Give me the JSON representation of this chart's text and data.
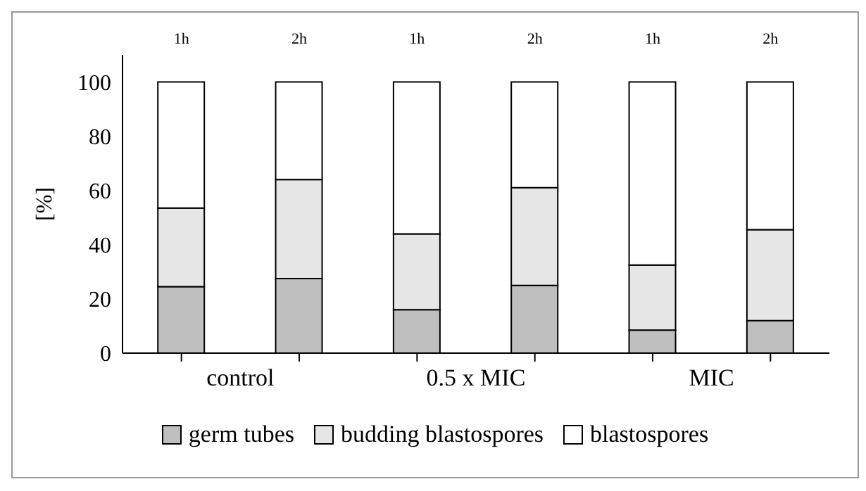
{
  "chart_data": {
    "type": "bar",
    "stacked": true,
    "ylabel": "[%]",
    "categories": [
      "1h",
      "2h",
      "1h",
      "2h",
      "1h",
      "2h"
    ],
    "annotations": [
      "control",
      "0.5 x MIC",
      "MIC"
    ],
    "series": [
      {
        "name": "germ tubes",
        "color": "#bfbfbf",
        "values": [
          24.5,
          27.5,
          16,
          25,
          8.5,
          12
        ]
      },
      {
        "name": "budding blastospores",
        "color": "#e6e6e6",
        "values": [
          29,
          36.5,
          28,
          36,
          24,
          33.5
        ]
      },
      {
        "name": "blastospores",
        "color": "#ffffff",
        "values": [
          46.5,
          36,
          56,
          39,
          67.5,
          54.5
        ]
      }
    ],
    "ylim": [
      0,
      110
    ],
    "yticks": [
      0,
      20,
      40,
      60,
      80,
      100
    ],
    "grid": false,
    "legend": "bottom"
  }
}
